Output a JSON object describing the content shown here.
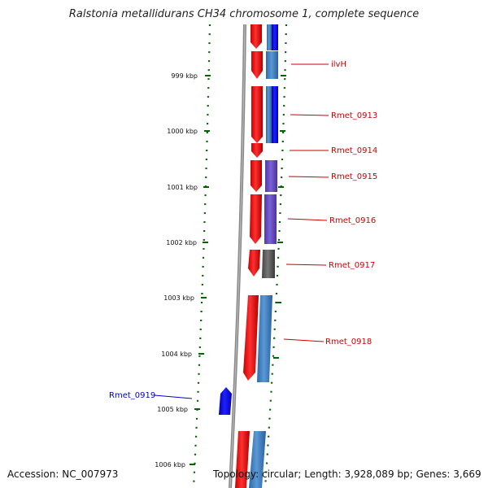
{
  "title": "Ralstonia metallidurans CH34 chromosome 1, complete sequence",
  "accession": "Accession: NC_007973",
  "summary": "Topology: circular; Length: 3,928,089 bp; Genes: 3,669",
  "colors": {
    "forward_gene": "#ff0000",
    "reverse_gene": "#0000ff",
    "cds_blue": "#3b7fc6",
    "cds_purple": "#6a50c8",
    "cds_gray": "#666666",
    "backbone": "#888888",
    "tick": "#006400",
    "label_red": "#cc0000",
    "label_blue": "#0000cc"
  },
  "scale_labels": [
    "999 kbp",
    "1000 kbp",
    "1001 kbp",
    "1002 kbp",
    "1003 kbp",
    "1004 kbp",
    "1005 kbp",
    "1006 kbp"
  ],
  "gene_labels": [
    {
      "name": "ilvH",
      "color": "red"
    },
    {
      "name": "Rmet_0913",
      "color": "red"
    },
    {
      "name": "Rmet_0914",
      "color": "red"
    },
    {
      "name": "Rmet_0915",
      "color": "red"
    },
    {
      "name": "Rmet_0916",
      "color": "red"
    },
    {
      "name": "Rmet_0917",
      "color": "red"
    },
    {
      "name": "Rmet_0918",
      "color": "red"
    },
    {
      "name": "Rmet_0919",
      "color": "blue"
    }
  ]
}
